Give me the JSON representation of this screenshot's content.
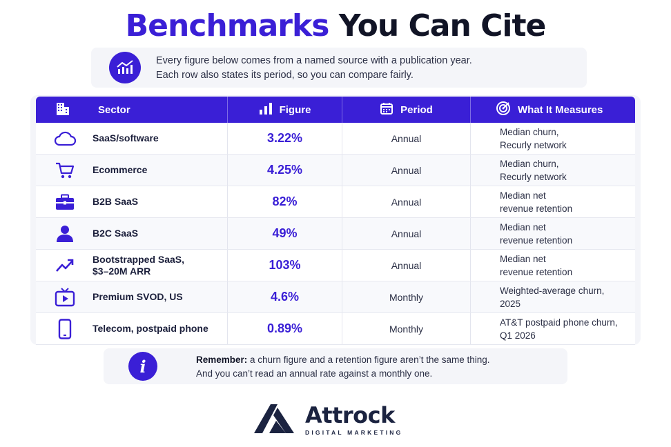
{
  "title": {
    "accent": "Benchmarks",
    "rest": "You Can Cite"
  },
  "intro": {
    "icon": "growth-chart-icon",
    "line1": "Every figure below comes from a named source with a publication year.",
    "line2": "Each row also states its period, so you can compare fairly."
  },
  "table": {
    "headers": {
      "sector": "Sector",
      "figure": "Figure",
      "period": "Period",
      "measures": "What It Measures"
    },
    "rows": [
      {
        "icon": "cloud-icon",
        "sector_line1": "SaaS/software",
        "sector_line2": "",
        "figure": "3.22%",
        "period": "Annual",
        "measure_line1": "Median churn,",
        "measure_line2": "Recurly network"
      },
      {
        "icon": "cart-icon",
        "sector_line1": "Ecommerce",
        "sector_line2": "",
        "figure": "4.25%",
        "period": "Annual",
        "measure_line1": "Median churn,",
        "measure_line2": "Recurly network"
      },
      {
        "icon": "briefcase-icon",
        "sector_line1": "B2B SaaS",
        "sector_line2": "",
        "figure": "82%",
        "period": "Annual",
        "measure_line1": "Median net",
        "measure_line2": "revenue retention"
      },
      {
        "icon": "person-icon",
        "sector_line1": "B2C SaaS",
        "sector_line2": "",
        "figure": "49%",
        "period": "Annual",
        "measure_line1": "Median net",
        "measure_line2": "revenue retention"
      },
      {
        "icon": "trend-up-icon",
        "sector_line1": "Bootstrapped SaaS,",
        "sector_line2": "$3–20M ARR",
        "figure": "103%",
        "period": "Annual",
        "measure_line1": "Median net",
        "measure_line2": "revenue retention"
      },
      {
        "icon": "tv-play-icon",
        "sector_line1": "Premium SVOD, US",
        "sector_line2": "",
        "figure": "4.6%",
        "period": "Monthly",
        "measure_line1": "Weighted-average churn,",
        "measure_line2": "2025"
      },
      {
        "icon": "phone-icon",
        "sector_line1": "Telecom, postpaid phone",
        "sector_line2": "",
        "figure": "0.89%",
        "period": "Monthly",
        "measure_line1": "AT&T postpaid phone churn,",
        "measure_line2": "Q1 2026"
      }
    ]
  },
  "note": {
    "icon": "info-icon",
    "icon_glyph": "i",
    "bold": "Remember:",
    "line1_rest": " a churn figure and a retention figure aren’t the same thing.",
    "line2": "And you can’t read an annual rate against a monthly one."
  },
  "logo": {
    "name": "Attrock",
    "tagline": "DIGITAL MARKETING"
  },
  "colors": {
    "accent": "#3a1fd6",
    "dark": "#111426",
    "panel": "#f4f5f9"
  }
}
